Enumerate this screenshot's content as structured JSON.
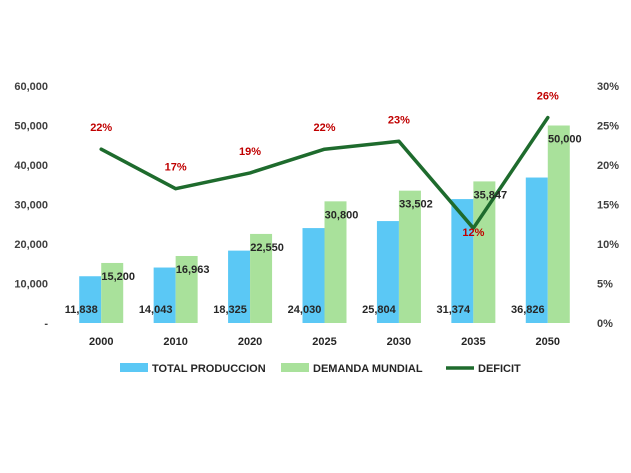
{
  "chart_data": {
    "type": "bar",
    "categories": [
      "2000",
      "2010",
      "2020",
      "2025",
      "2030",
      "2035",
      "2050"
    ],
    "series": [
      {
        "name": "TOTAL PRODUCCION",
        "type": "bar",
        "axis": "left",
        "color": "#5bc8f5",
        "values": [
          11838,
          14043,
          18325,
          24030,
          25804,
          31374,
          36826
        ],
        "labels": [
          "11,838",
          "14,043",
          "18,325",
          "24,030",
          "25,804",
          "31,374",
          "36,826"
        ]
      },
      {
        "name": "DEMANDA MUNDIAL",
        "type": "bar",
        "axis": "left",
        "color": "#a9e19b",
        "values": [
          15200,
          16963,
          22550,
          30800,
          33502,
          35847,
          50000
        ],
        "labels": [
          "15,200",
          "16,963",
          "22,550",
          "30,800",
          "33,502",
          "35,847",
          "50,000"
        ]
      },
      {
        "name": "DEFICIT",
        "type": "line",
        "axis": "right",
        "color": "#1e6b2d",
        "values": [
          22,
          17,
          19,
          22,
          23,
          12,
          26
        ],
        "labels": [
          "22%",
          "17%",
          "19%",
          "22%",
          "23%",
          "12%",
          "26%"
        ]
      }
    ],
    "y_left": {
      "min": 0,
      "max": 60000,
      "ticks": [
        0,
        10000,
        20000,
        30000,
        40000,
        50000,
        60000
      ],
      "tick_labels": [
        "-",
        "10,000",
        "20,000",
        "30,000",
        "40,000",
        "50,000",
        "60,000"
      ]
    },
    "y_right": {
      "min": 0,
      "max": 30,
      "ticks": [
        0,
        5,
        10,
        15,
        20,
        25,
        30
      ],
      "tick_labels": [
        "0%",
        "5%",
        "10%",
        "15%",
        "20%",
        "25%",
        "30%"
      ]
    },
    "grid": false,
    "legend_position": "bottom",
    "label_color": "#c00000"
  }
}
